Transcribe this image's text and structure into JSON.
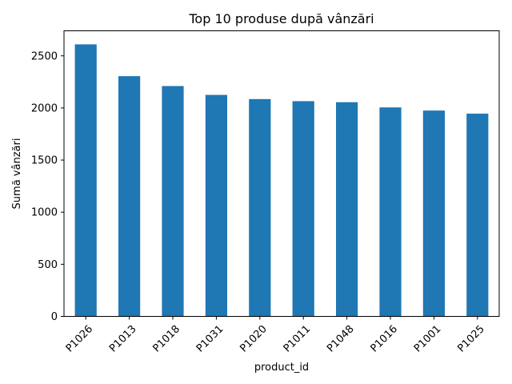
{
  "chart_data": {
    "type": "bar",
    "title": "Top 10 produse după vânzări",
    "xlabel": "product_id",
    "ylabel": "Sumă vânzări",
    "categories": [
      "P1026",
      "P1013",
      "P1018",
      "P1031",
      "P1020",
      "P1011",
      "P1048",
      "P1016",
      "P1001",
      "P1025"
    ],
    "values": [
      2610,
      2305,
      2210,
      2125,
      2085,
      2065,
      2055,
      2005,
      1975,
      1945
    ],
    "ylim": [
      0,
      2740
    ],
    "yticks": [
      0,
      500,
      1000,
      1500,
      2000,
      2500
    ],
    "ytick_labels": [
      "0",
      "500",
      "1000",
      "1500",
      "2000",
      "2500"
    ],
    "grid": false,
    "bar_color": "#1f77b4",
    "xtick_rotation_degrees": 45
  }
}
